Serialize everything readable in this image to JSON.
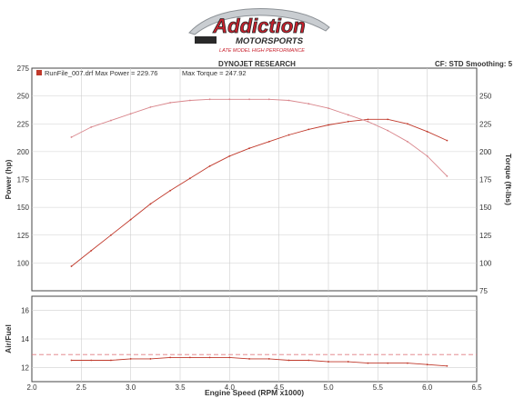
{
  "logo": {
    "brand": "Addiction",
    "sub": "MOTORSPORTS",
    "tagline": "LATE MODEL HIGH PERFORMANCE",
    "colors": {
      "red": "#c8202c",
      "dark": "#2a2a2a",
      "silver": "#9aa0a6"
    }
  },
  "header": {
    "title": "DYNOJET RESEARCH",
    "cf": "CF: STD",
    "smoothing": "Smoothing: 5"
  },
  "legend": {
    "run": "RunFile_007.drf Max Power = 229.76",
    "torque": "Max Torque = 247.92",
    "swatch_color": "#c0392b"
  },
  "chart_data": [
    {
      "type": "line",
      "xlabel": "Engine Speed (RPM x1000)",
      "ylabel": "Power (hp)",
      "y2label": "Torque (ft-lbs)",
      "xlim": [
        2.0,
        6.5
      ],
      "ylim": [
        75,
        275
      ],
      "y2lim": [
        75,
        275
      ],
      "x_ticks": [
        "2.0",
        "2.5",
        "3.0",
        "3.5",
        "4.0",
        "4.5",
        "5.0",
        "5.5",
        "6.0",
        "6.5"
      ],
      "y_ticks": [
        "100",
        "125",
        "150",
        "175",
        "200",
        "225",
        "250",
        "275"
      ],
      "y2_ticks": [
        "75",
        "100",
        "125",
        "150",
        "175",
        "200",
        "225",
        "250"
      ],
      "grid": true,
      "legend_position": "top-left",
      "series": [
        {
          "axis": "left",
          "color": "#c0392b",
          "x": [
            2.4,
            2.6,
            2.8,
            3.0,
            3.2,
            3.4,
            3.6,
            3.8,
            4.0,
            4.2,
            4.4,
            4.6,
            4.8,
            5.0,
            5.2,
            5.4,
            5.6,
            5.8,
            6.0,
            6.2
          ],
          "values": [
            97,
            111,
            125,
            139,
            153,
            165,
            176,
            187,
            196,
            203,
            209,
            215,
            220,
            224,
            227,
            229,
            229,
            225,
            218,
            210
          ]
        },
        {
          "axis": "right",
          "color": "#d9868c",
          "x": [
            2.4,
            2.6,
            2.8,
            3.0,
            3.2,
            3.4,
            3.6,
            3.8,
            4.0,
            4.2,
            4.4,
            4.6,
            4.8,
            5.0,
            5.2,
            5.4,
            5.6,
            5.8,
            6.0,
            6.2
          ],
          "values": [
            213,
            222,
            228,
            234,
            240,
            244,
            246,
            247,
            247,
            247,
            247,
            246,
            243,
            239,
            233,
            227,
            219,
            209,
            196,
            178
          ]
        }
      ]
    },
    {
      "type": "line",
      "ylabel": "Air/Fuel",
      "xlim": [
        2.0,
        6.5
      ],
      "ylim": [
        11,
        17
      ],
      "y_ticks": [
        "12",
        "14",
        "16"
      ],
      "grid": true,
      "reference_line": 12.9,
      "series": [
        {
          "color": "#c0392b",
          "x": [
            2.4,
            2.6,
            2.8,
            3.0,
            3.2,
            3.4,
            3.6,
            3.8,
            4.0,
            4.2,
            4.4,
            4.6,
            4.8,
            5.0,
            5.2,
            5.4,
            5.6,
            5.8,
            6.0,
            6.2
          ],
          "values": [
            12.5,
            12.5,
            12.5,
            12.6,
            12.6,
            12.7,
            12.7,
            12.7,
            12.7,
            12.6,
            12.6,
            12.5,
            12.5,
            12.4,
            12.4,
            12.3,
            12.3,
            12.3,
            12.2,
            12.1
          ]
        }
      ]
    }
  ]
}
